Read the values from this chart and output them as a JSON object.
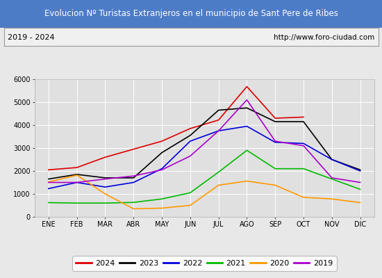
{
  "title": "Evolucion Nº Turistas Extranjeros en el municipio de Sant Pere de Ribes",
  "subtitle_left": "2019 - 2024",
  "subtitle_right": "http://www.foro-ciudad.com",
  "title_bg_color": "#4d7cc7",
  "title_text_color": "#ffffff",
  "months": [
    "ENE",
    "FEB",
    "MAR",
    "ABR",
    "MAY",
    "JUN",
    "JUL",
    "AGO",
    "SEP",
    "OCT",
    "NOV",
    "DIC"
  ],
  "series": {
    "2024": {
      "color": "#dd0000",
      "data": [
        2050,
        2150,
        2600,
        2950,
        3300,
        3850,
        4220,
        5680,
        4300,
        4350,
        null,
        null
      ]
    },
    "2023": {
      "color": "#000000",
      "data": [
        1650,
        1850,
        1700,
        1700,
        2800,
        3550,
        4650,
        4750,
        4150,
        4150,
        2500,
        2050
      ]
    },
    "2022": {
      "color": "#0000dd",
      "data": [
        1230,
        1500,
        1300,
        1500,
        2100,
        3300,
        3750,
        3950,
        3250,
        3200,
        2500,
        2000
      ]
    },
    "2021": {
      "color": "#00bb00",
      "data": [
        620,
        600,
        600,
        630,
        780,
        1050,
        1950,
        2900,
        2100,
        2100,
        1650,
        1200
      ]
    },
    "2020": {
      "color": "#ff9900",
      "data": [
        1520,
        1820,
        1000,
        350,
        380,
        500,
        1380,
        1560,
        1380,
        850,
        780,
        620
      ]
    },
    "2019": {
      "color": "#aa00cc",
      "data": [
        1500,
        1500,
        1650,
        1780,
        2050,
        2650,
        3750,
        5100,
        3300,
        3100,
        1700,
        1500
      ]
    }
  },
  "ylim": [
    0,
    6000
  ],
  "yticks": [
    0,
    1000,
    2000,
    3000,
    4000,
    5000,
    6000
  ],
  "legend_order": [
    "2024",
    "2023",
    "2022",
    "2021",
    "2020",
    "2019"
  ],
  "bg_color": "#e8e8e8",
  "plot_bg_color": "#e0e0e0",
  "grid_color": "#ffffff",
  "subtitle_bg": "#f0f0f0"
}
